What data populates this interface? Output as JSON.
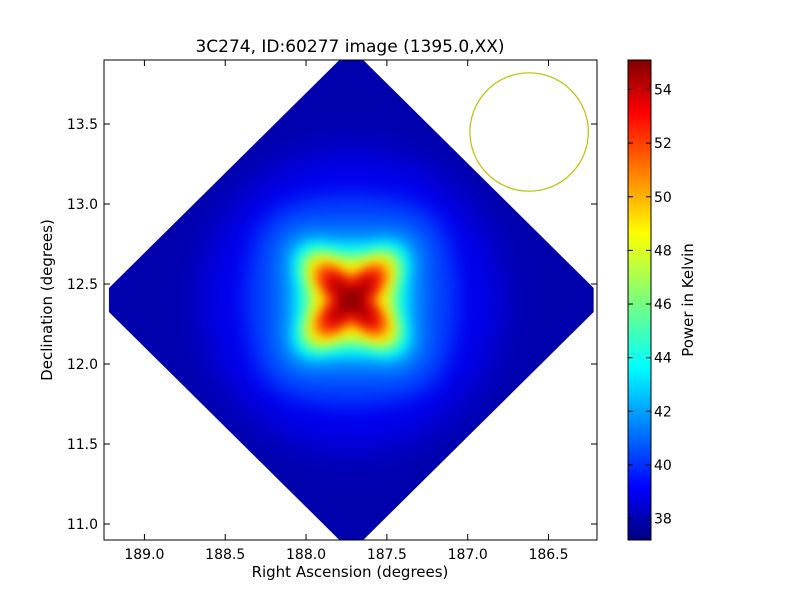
{
  "chart_data": {
    "type": "heatmap",
    "title": "3C274, ID:60277 image (1395.0,XX)",
    "xlabel": "Right Ascension (degrees)",
    "ylabel": "Declination (degrees)",
    "xlim": [
      189.25,
      186.2
    ],
    "ylim": [
      10.9,
      13.9
    ],
    "x_ticks": [
      189.0,
      188.5,
      188.0,
      187.5,
      187.0,
      186.5
    ],
    "x_tick_labels": [
      "189.0",
      "188.5",
      "188.0",
      "187.5",
      "187.0",
      "186.5"
    ],
    "y_ticks": [
      11.0,
      11.5,
      12.0,
      12.5,
      13.0,
      13.5
    ],
    "y_tick_labels": [
      "11.0",
      "11.5",
      "12.0",
      "12.5",
      "13.0",
      "13.5"
    ],
    "colormap": "jet",
    "colorbar": {
      "label": "Power in Kelvin",
      "range": [
        37.2,
        55.1
      ],
      "ticks": [
        38,
        40,
        42,
        44,
        46,
        48,
        50,
        52,
        54
      ],
      "tick_labels": [
        "38",
        "40",
        "42",
        "44",
        "46",
        "48",
        "50",
        "52",
        "54"
      ]
    },
    "image": {
      "footprint_shape": "diamond",
      "footprint_center": [
        187.72,
        12.4
      ],
      "footprint_half_width_ra": 1.5,
      "footprint_half_height_dec": 1.5,
      "background_value": 38.0,
      "peak_value": 55.0,
      "peak_position": [
        187.72,
        12.4
      ]
    },
    "beam_circle": {
      "center": [
        186.62,
        13.45
      ],
      "radius_dec": 0.37,
      "color": "#bfbf00"
    },
    "grid": false
  }
}
